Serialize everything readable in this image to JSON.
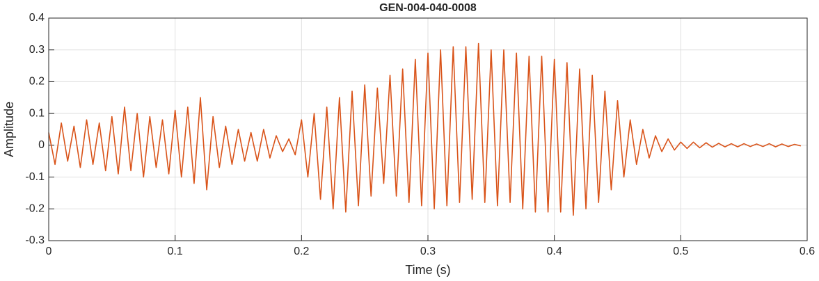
{
  "chart_data": {
    "type": "line",
    "title": "GEN-004-040-0008",
    "xlabel": "Time (s)",
    "ylabel": "Amplitude",
    "color": "#d95319",
    "grid": true,
    "xlim": [
      0,
      0.6
    ],
    "xticks": [
      0,
      0.1,
      0.2,
      0.3,
      0.4,
      0.5,
      0.6
    ],
    "ylim": [
      -0.3,
      0.4
    ],
    "yticks": [
      -0.3,
      -0.2,
      -0.1,
      0,
      0.1,
      0.2,
      0.3,
      0.4
    ],
    "x": [
      0,
      0.005,
      0.01,
      0.015,
      0.02,
      0.025,
      0.03,
      0.035,
      0.04,
      0.045,
      0.05,
      0.055,
      0.06,
      0.065,
      0.07,
      0.075,
      0.08,
      0.085,
      0.09,
      0.095,
      0.1,
      0.105,
      0.11,
      0.115,
      0.12,
      0.125,
      0.13,
      0.135,
      0.14,
      0.145,
      0.15,
      0.155,
      0.16,
      0.165,
      0.17,
      0.175,
      0.18,
      0.185,
      0.19,
      0.195,
      0.2,
      0.205,
      0.21,
      0.215,
      0.22,
      0.225,
      0.23,
      0.235,
      0.24,
      0.245,
      0.25,
      0.255,
      0.26,
      0.265,
      0.27,
      0.275,
      0.28,
      0.285,
      0.29,
      0.295,
      0.3,
      0.305,
      0.31,
      0.315,
      0.32,
      0.325,
      0.33,
      0.335,
      0.34,
      0.345,
      0.35,
      0.355,
      0.36,
      0.365,
      0.37,
      0.375,
      0.38,
      0.385,
      0.39,
      0.395,
      0.4,
      0.405,
      0.41,
      0.415,
      0.42,
      0.425,
      0.43,
      0.435,
      0.44,
      0.445,
      0.45,
      0.455,
      0.46,
      0.465,
      0.47,
      0.475,
      0.48,
      0.485,
      0.49,
      0.495,
      0.5,
      0.505,
      0.51,
      0.515,
      0.52,
      0.525,
      0.53,
      0.535,
      0.54,
      0.545,
      0.55,
      0.555,
      0.56,
      0.565,
      0.57,
      0.575,
      0.58,
      0.585,
      0.59,
      0.595
    ],
    "values": [
      0.04,
      -0.06,
      0.07,
      -0.05,
      0.06,
      -0.07,
      0.08,
      -0.06,
      0.07,
      -0.08,
      0.09,
      -0.09,
      0.12,
      -0.08,
      0.1,
      -0.1,
      0.09,
      -0.07,
      0.08,
      -0.09,
      0.11,
      -0.1,
      0.12,
      -0.12,
      0.15,
      -0.14,
      0.09,
      -0.07,
      0.06,
      -0.06,
      0.05,
      -0.05,
      0.04,
      -0.05,
      0.05,
      -0.04,
      0.03,
      -0.02,
      0.02,
      -0.03,
      0.08,
      -0.1,
      0.1,
      -0.17,
      0.12,
      -0.2,
      0.15,
      -0.21,
      0.17,
      -0.19,
      0.19,
      -0.16,
      0.18,
      -0.12,
      0.22,
      -0.16,
      0.24,
      -0.18,
      0.27,
      -0.19,
      0.29,
      -0.2,
      0.3,
      -0.19,
      0.31,
      -0.18,
      0.31,
      -0.17,
      0.32,
      -0.18,
      0.3,
      -0.19,
      0.3,
      -0.18,
      0.29,
      -0.2,
      0.28,
      -0.21,
      0.28,
      -0.21,
      0.27,
      -0.21,
      0.26,
      -0.22,
      0.24,
      -0.2,
      0.22,
      -0.18,
      0.17,
      -0.14,
      0.14,
      -0.1,
      0.08,
      -0.06,
      0.05,
      -0.04,
      0.03,
      -0.02,
      0.02,
      -0.015,
      0.01,
      -0.01,
      0.01,
      -0.008,
      0.008,
      -0.006,
      0.006,
      -0.005,
      0.005,
      -0.005,
      0.005,
      -0.004,
      0.004,
      -0.004,
      0.005,
      -0.005,
      0.004,
      -0.004,
      0.003,
      -0.002
    ]
  }
}
